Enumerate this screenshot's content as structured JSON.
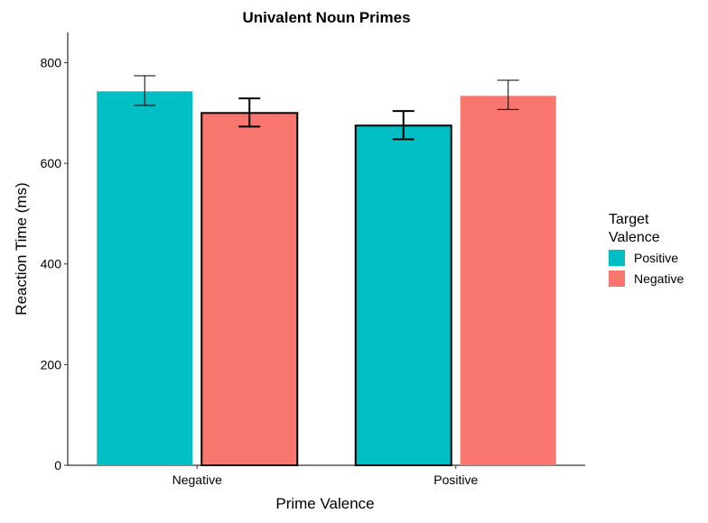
{
  "chart_data": {
    "type": "bar",
    "title": "Univalent Noun Primes",
    "xlabel": "Prime Valence",
    "ylabel": "Reaction Time (ms)",
    "categories": [
      "Negative",
      "Positive"
    ],
    "legend": {
      "title": "Target Valence",
      "position": "right"
    },
    "ylim": [
      0,
      860
    ],
    "yticks": [
      0,
      200,
      400,
      600,
      800
    ],
    "grid": false,
    "series": [
      {
        "name": "Positive",
        "color": "#00BFC4",
        "values": [
          743,
          675
        ],
        "error_low": [
          715,
          648
        ],
        "error_high": [
          774,
          704
        ]
      },
      {
        "name": "Negative",
        "color": "#F8766D",
        "values": [
          700,
          734
        ],
        "error_low": [
          673,
          707
        ],
        "error_high": [
          729,
          765
        ]
      }
    ]
  }
}
